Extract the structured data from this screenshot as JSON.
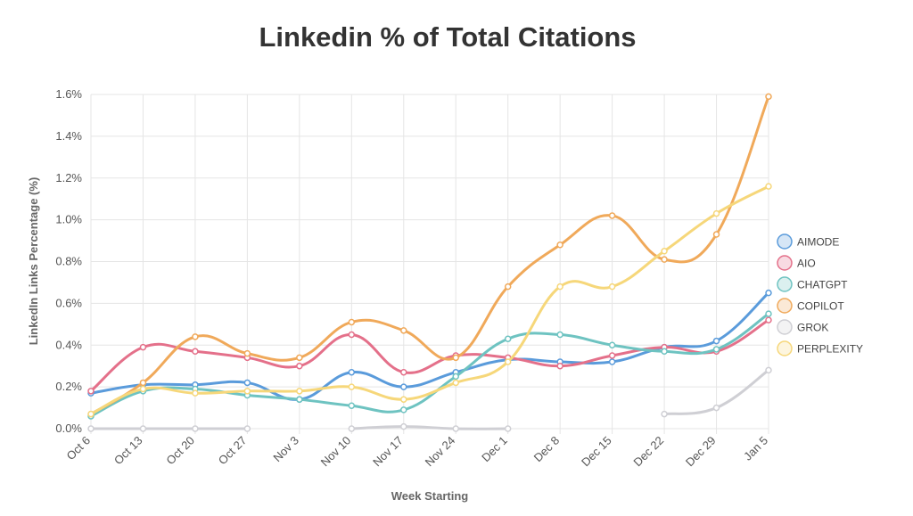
{
  "chart_data": {
    "type": "line",
    "title": "Linkedin % of Total Citations",
    "xlabel": "Week Starting",
    "ylabel": "LinkedIn Links Percentage (%)",
    "categories": [
      "Oct 6",
      "Oct 13",
      "Oct 20",
      "Oct 27",
      "Nov 3",
      "Nov 10",
      "Nov 17",
      "Nov 24",
      "Dec 1",
      "Dec 8",
      "Dec 15",
      "Dec 22",
      "Dec 29",
      "Jan 5"
    ],
    "ylim": [
      0,
      1.6
    ],
    "yticks": [
      0,
      0.2,
      0.4,
      0.6,
      0.8,
      1.0,
      1.2,
      1.4,
      1.6
    ],
    "ytick_labels": [
      "0.0%",
      "0.2%",
      "0.4%",
      "0.6%",
      "0.8%",
      "1.0%",
      "1.2%",
      "1.4%",
      "1.6%"
    ],
    "grid": true,
    "legend_position": "right",
    "series": [
      {
        "name": "AIMODE",
        "color": "#5a9bdb",
        "values": [
          0.17,
          0.21,
          0.21,
          0.22,
          0.14,
          0.27,
          0.2,
          0.27,
          0.33,
          0.32,
          0.32,
          0.39,
          0.42,
          0.65
        ]
      },
      {
        "name": "AIO",
        "color": "#e4708a",
        "values": [
          0.18,
          0.39,
          0.37,
          0.34,
          0.3,
          0.45,
          0.27,
          0.35,
          0.34,
          0.3,
          0.35,
          0.39,
          0.37,
          0.52
        ]
      },
      {
        "name": "CHATGPT",
        "color": "#6ec3c1",
        "values": [
          0.06,
          0.18,
          0.19,
          0.16,
          0.14,
          0.11,
          0.09,
          0.25,
          0.43,
          0.45,
          0.4,
          0.37,
          0.38,
          0.55
        ]
      },
      {
        "name": "COPILOT",
        "color": "#f0a95a",
        "values": [
          0.07,
          0.22,
          0.44,
          0.36,
          0.34,
          0.51,
          0.47,
          0.34,
          0.68,
          0.88,
          1.02,
          0.81,
          0.93,
          1.59
        ]
      },
      {
        "name": "GROK",
        "color": "#cfcfd4",
        "values": [
          0.0,
          0.0,
          0.0,
          0.0,
          null,
          0.0,
          0.01,
          0.0,
          0.0,
          null,
          null,
          0.07,
          0.1,
          0.28
        ]
      },
      {
        "name": "PERPLEXITY",
        "color": "#f6d77a",
        "values": [
          0.07,
          0.19,
          0.17,
          0.18,
          0.18,
          0.2,
          0.14,
          0.22,
          0.32,
          0.68,
          0.68,
          0.85,
          1.03,
          1.16
        ]
      }
    ]
  }
}
